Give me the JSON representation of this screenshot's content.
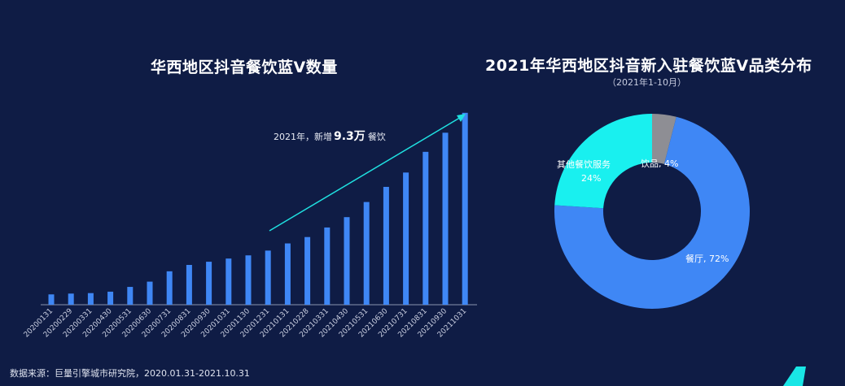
{
  "source_note": "数据来源：巨量引擎城市研究院，2020.01.31-2021.10.31",
  "chart_data": [
    {
      "type": "bar",
      "title": "华西地区抖音餐饮蓝V数量",
      "categories": [
        "20200131",
        "20200229",
        "20200331",
        "20200430",
        "20200531",
        "20200630",
        "20200731",
        "20200831",
        "20200930",
        "20201031",
        "20201130",
        "20201231",
        "20210131",
        "20210228",
        "20210331",
        "20210430",
        "20210531",
        "20210630",
        "20210731",
        "20210831",
        "20210930",
        "20211031"
      ],
      "values": [
        6.5,
        7,
        7.3,
        8.2,
        11.2,
        14.5,
        21,
        25,
        27,
        29,
        31,
        34,
        38.5,
        42.5,
        48.5,
        55,
        64.5,
        74,
        83,
        96,
        108,
        120.5
      ],
      "ylim": [
        0,
        125
      ],
      "xlabel": "",
      "ylabel": "",
      "color": "#3f87f5",
      "annotation": {
        "prefix": "2021年，新增",
        "value": "9.3万",
        "suffix": "餐饮"
      },
      "trend_color": "#1fe0e0"
    },
    {
      "type": "pie",
      "title": "2021年华西地区抖音新入驻餐饮蓝V品类分布",
      "subtitle": "（2021年1-10月）",
      "slices": [
        {
          "name": "饮品",
          "value": 4,
          "label": "饮品, 4%",
          "color": "#8e8e94"
        },
        {
          "name": "餐厅",
          "value": 72,
          "label": "餐厅, 72%",
          "color": "#3f87f5"
        },
        {
          "name": "其他餐饮服务",
          "value": 24,
          "label_line1": "其他餐饮服务",
          "label_line2": "24%",
          "color": "#19f0ef"
        }
      ]
    }
  ],
  "decor_color": "#19e6e6"
}
